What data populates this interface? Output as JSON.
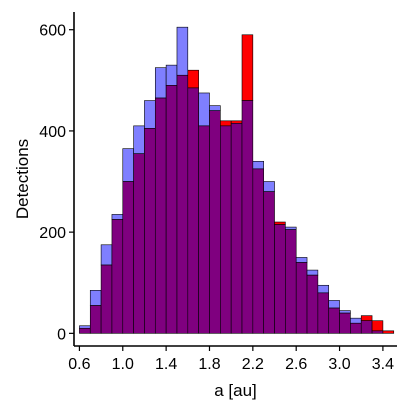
{
  "chart_data": {
    "type": "bar",
    "subtype": "overlaid-histogram",
    "title": "",
    "xlabel": "a [au]",
    "ylabel": "Detections",
    "xlim": [
      0.55,
      3.53
    ],
    "ylim": [
      -25,
      635
    ],
    "x_ticks": [
      0.6,
      1.0,
      1.4,
      1.8,
      2.2,
      2.6,
      3.0,
      3.4
    ],
    "x_tick_labels": [
      "0.6",
      "1.0",
      "1.4",
      "1.8",
      "2.2",
      "2.6",
      "3.0",
      "3.4"
    ],
    "y_ticks": [
      0,
      200,
      400,
      600
    ],
    "y_tick_labels": [
      "0",
      "200",
      "400",
      "600"
    ],
    "grid": false,
    "legend": "none",
    "bin_width": 0.1,
    "bin_start": 0.6,
    "series": [
      {
        "color": "#7f7fff",
        "values": [
          15,
          85,
          175,
          235,
          365,
          410,
          460,
          525,
          530,
          605,
          485,
          475,
          450,
          410,
          415,
          460,
          340,
          300,
          215,
          210,
          150,
          125,
          95,
          65,
          45,
          30,
          25,
          5
        ]
      },
      {
        "color": "#ff0000",
        "values": [
          10,
          55,
          135,
          225,
          300,
          355,
          405,
          465,
          490,
          510,
          520,
          410,
          440,
          420,
          420,
          590,
          325,
          280,
          220,
          205,
          140,
          115,
          80,
          50,
          40,
          20,
          35,
          25,
          5
        ]
      }
    ],
    "overlap_color": "#7f007f"
  }
}
